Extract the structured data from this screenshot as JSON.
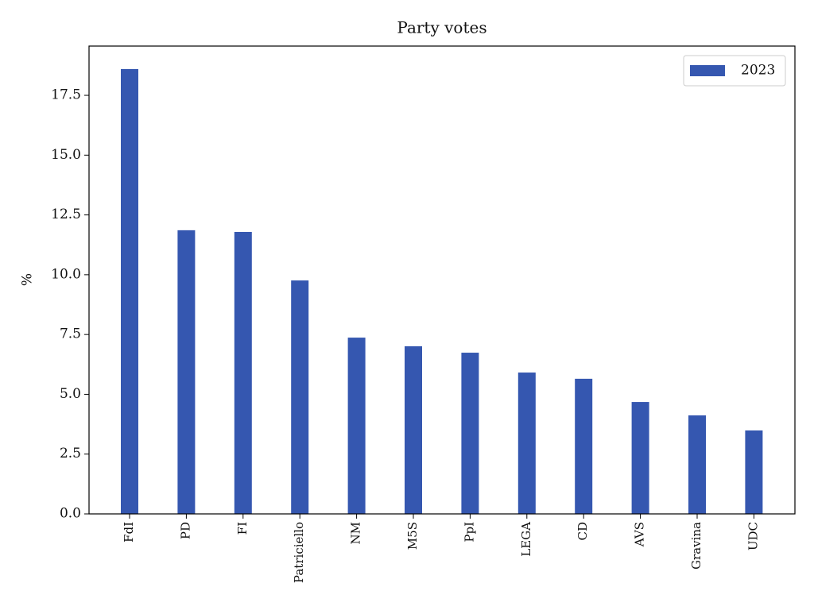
{
  "chart_data": {
    "type": "bar",
    "title": "Party votes",
    "ylabel": "%",
    "categories": [
      "FdI",
      "PD",
      "FI",
      "Patriciello",
      "NM",
      "M5S",
      "PpI",
      "LEGA",
      "CD",
      "AVS",
      "Gravina",
      "UDC"
    ],
    "series": [
      {
        "name": "2023",
        "color": "#3557b0",
        "values": [
          18.6,
          11.86,
          11.79,
          9.76,
          7.37,
          7.01,
          6.74,
          5.91,
          5.65,
          4.68,
          4.12,
          3.49
        ]
      }
    ],
    "ylim": [
      0,
      19.56
    ],
    "yticks": [
      {
        "value": 0,
        "label": "0.0"
      },
      2.5,
      {
        "value": 5,
        "label": "5.0"
      },
      7.5,
      {
        "value": 10,
        "label": "10.0"
      },
      12.5,
      {
        "value": 15,
        "label": "15.0"
      },
      17.5
    ],
    "legend": "upper right"
  }
}
